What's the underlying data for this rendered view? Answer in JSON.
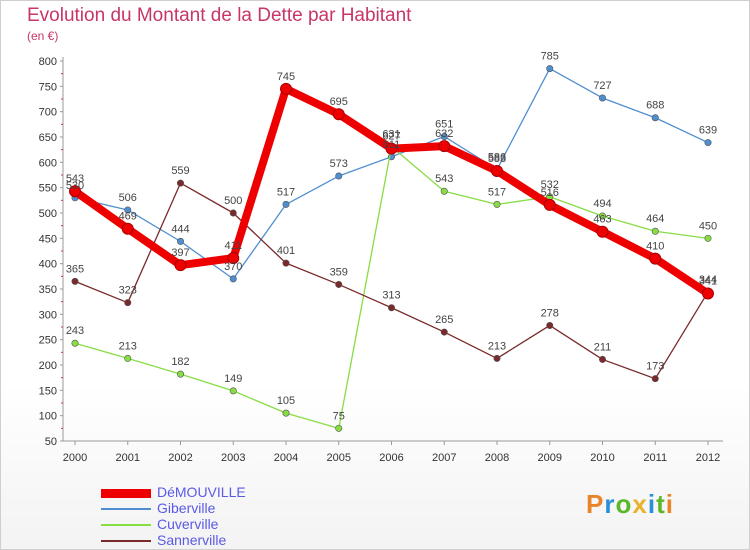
{
  "chart_data": {
    "type": "line",
    "title": "Evolution du Montant de la Dette par Habitant",
    "ylabel": "(en €)",
    "x": [
      "2000",
      "2001",
      "2002",
      "2003",
      "2004",
      "2005",
      "2006",
      "2007",
      "2008",
      "2009",
      "2010",
      "2011",
      "2012"
    ],
    "yticks": [
      50,
      100,
      150,
      200,
      250,
      300,
      350,
      400,
      450,
      500,
      550,
      600,
      650,
      700,
      750,
      800
    ],
    "ylim": [
      50,
      800
    ],
    "grid": false,
    "legend": "bottom-left",
    "series": [
      {
        "name": "DéMOUVILLE",
        "color": "#ee0000",
        "values": [
          543,
          469,
          397,
          411,
          745,
          695,
          627,
          632,
          583,
          516,
          463,
          410,
          341
        ]
      },
      {
        "name": "Giberville",
        "color": "#4f8fd0",
        "values": [
          530,
          506,
          444,
          370,
          517,
          573,
          611,
          651,
          586,
          785,
          727,
          688,
          639
        ]
      },
      {
        "name": "Cuverville",
        "color": "#88dd44",
        "values": [
          243,
          213,
          182,
          149,
          105,
          75,
          631,
          543,
          517,
          532,
          494,
          464,
          450
        ]
      },
      {
        "name": "Sannerville",
        "color": "#7a2a2a",
        "values": [
          365,
          323,
          559,
          500,
          401,
          359,
          313,
          265,
          213,
          278,
          211,
          173,
          344
        ]
      }
    ],
    "data_labels": {
      "DéMOUVILLE": [
        "543",
        "469",
        "397",
        "411",
        "745",
        "695",
        "627",
        "632",
        "583",
        "516",
        "463",
        "410",
        "341"
      ],
      "Giberville": [
        "530",
        "506",
        "444",
        "370",
        "517",
        "573",
        "611",
        "651",
        "586",
        "785",
        "727",
        "688",
        "639"
      ],
      "Cuverville": [
        "243",
        "213",
        "182",
        "149",
        "105",
        "75",
        "631",
        "543",
        "517",
        "532",
        "494",
        "464",
        "450"
      ],
      "Sannerville": [
        "365",
        "323",
        "559",
        "500",
        "401",
        "359",
        "313",
        "265",
        "213",
        "278",
        "211",
        "173",
        "344"
      ]
    }
  },
  "logo": {
    "text": "Proxiti",
    "colors": [
      "#e8852a",
      "#2a8fd6",
      "#5cb82a",
      "#e8b22a",
      "#2a8fd6",
      "#5cb82a",
      "#e8852a"
    ]
  }
}
